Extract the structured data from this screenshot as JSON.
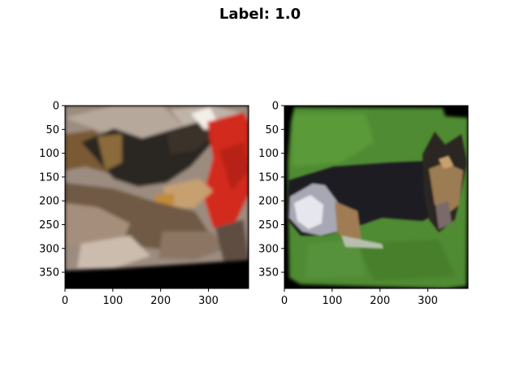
{
  "figure": {
    "title": "Label: 1.0"
  },
  "chart_data": [
    {
      "type": "image",
      "title": "",
      "xlabel": "",
      "ylabel": "",
      "xlim": [
        0,
        384
      ],
      "ylim": [
        384,
        0
      ],
      "xticks": [
        0,
        100,
        200,
        300
      ],
      "yticks": [
        0,
        50,
        100,
        150,
        200,
        250,
        300,
        350
      ],
      "xtick_labels": [
        "0",
        "100",
        "200",
        "300"
      ],
      "ytick_labels": [
        "0",
        "50",
        "100",
        "150",
        "200",
        "250",
        "300",
        "350"
      ],
      "content": "German shepherd dog lying among rubble next to a person in a red jacket",
      "palette": {
        "background": "#000000",
        "rubble": "#a08f80",
        "dark": "#2a2623",
        "dog_tan": "#8a6a3c",
        "red": "#d42a1d"
      }
    },
    {
      "type": "image",
      "title": "",
      "xlabel": "",
      "ylabel": "",
      "xlim": [
        0,
        384
      ],
      "ylim": [
        384,
        0
      ],
      "xticks": [
        0,
        100,
        200,
        300
      ],
      "yticks": [
        0,
        50,
        100,
        150,
        200,
        250,
        300,
        350
      ],
      "xtick_labels": [
        "0",
        "100",
        "200",
        "300"
      ],
      "ytick_labels": [
        "0",
        "50",
        "100",
        "150",
        "200",
        "250",
        "300",
        "350"
      ],
      "content": "German shepherd dog lying on green grass",
      "palette": {
        "background": "#000000",
        "grass": "#4e8a2e",
        "dark": "#1e1c24",
        "tan": "#a08560",
        "white": "#e0e0e8"
      }
    }
  ]
}
